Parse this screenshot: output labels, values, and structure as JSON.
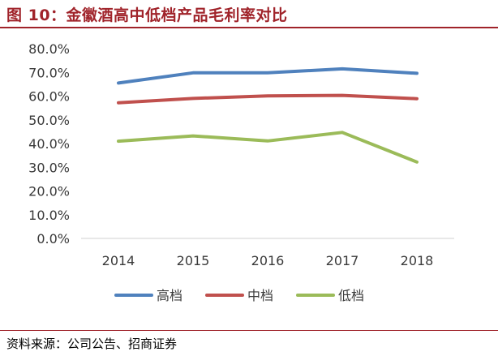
{
  "header": {
    "title": "图 10：金徽酒高中低档产品毛利率对比"
  },
  "footer": {
    "source": "资料来源：公司公告、招商证券"
  },
  "colors": {
    "accent": "#a0232a"
  },
  "chart_data": {
    "type": "line",
    "title": "",
    "xlabel": "",
    "ylabel": "",
    "x": [
      "2014",
      "2015",
      "2016",
      "2017",
      "2018"
    ],
    "ylim": [
      0,
      80
    ],
    "y_ticks": [
      "0.0%",
      "10.0%",
      "20.0%",
      "30.0%",
      "40.0%",
      "50.0%",
      "60.0%",
      "70.0%",
      "80.0%"
    ],
    "grid": false,
    "legend": "bottom",
    "series": [
      {
        "name": "高档",
        "color": "#4f81bd",
        "values": [
          65.5,
          69.8,
          69.8,
          71.5,
          69.6
        ]
      },
      {
        "name": "中档",
        "color": "#c0504d",
        "values": [
          57.2,
          59.0,
          60.1,
          60.3,
          58.9
        ]
      },
      {
        "name": "低档",
        "color": "#9bbb59",
        "values": [
          41.0,
          43.2,
          41.1,
          44.7,
          32.2
        ]
      }
    ]
  }
}
